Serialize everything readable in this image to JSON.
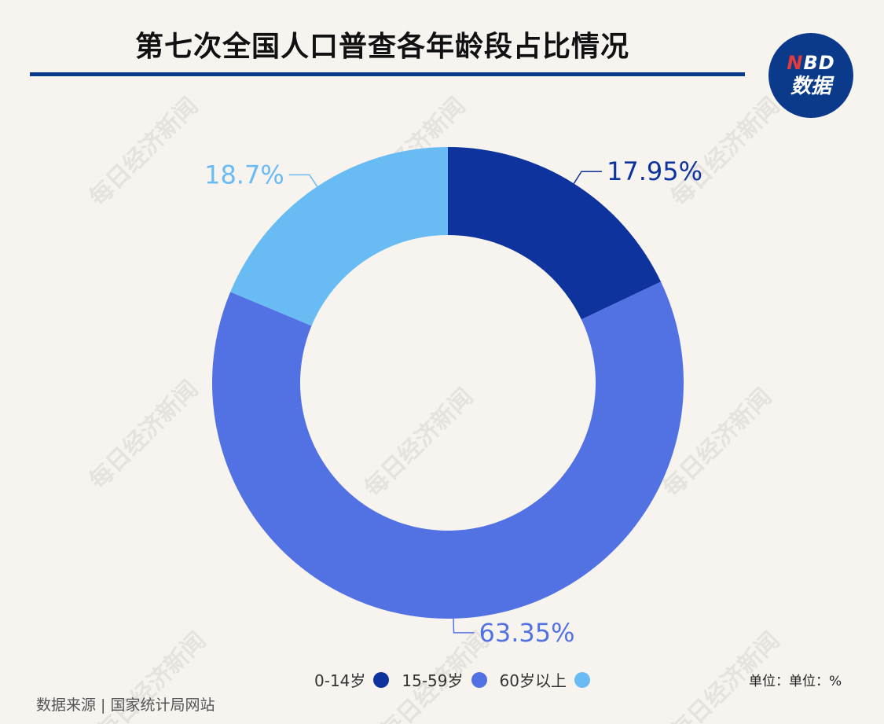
{
  "header": {
    "title": "第七次全国人口普查各年龄段占比情况",
    "logo_top": "NBD",
    "logo_bottom": "数据"
  },
  "footer": {
    "source": "数据来源 | 国家统计局网站",
    "unit": "单位：单位：%"
  },
  "watermark": "每日经济新闻",
  "colors": {
    "background": "#f7f4f0",
    "title_rule": "#0b3a8a",
    "logo_bg": "#0b3a8a"
  },
  "chart_data": {
    "type": "pie",
    "donut": true,
    "title": "第七次全国人口普查各年龄段占比情况",
    "legend_position": "bottom",
    "slices": [
      {
        "name": "0-14岁",
        "value": 17.95,
        "label": "17.95%",
        "color": "#0e339d"
      },
      {
        "name": "15-59岁",
        "value": 63.35,
        "label": "63.35%",
        "color": "#5272e3"
      },
      {
        "name": "60岁以上",
        "value": 18.7,
        "label": "18.7%",
        "color": "#69bbf4"
      }
    ]
  }
}
